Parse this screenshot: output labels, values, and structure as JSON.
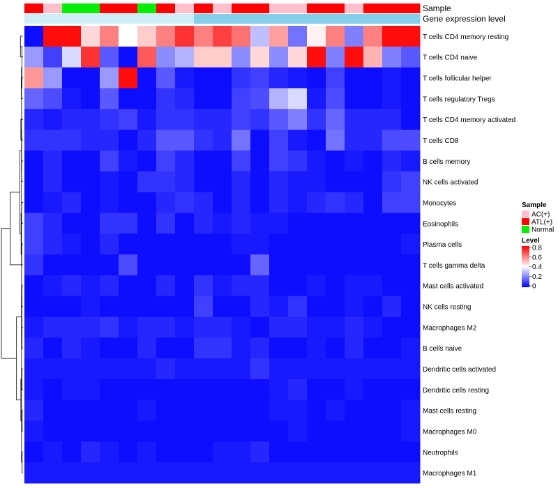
{
  "chart_data": {
    "type": "heatmap",
    "title": "",
    "annotation_tracks": [
      {
        "name": "Sample",
        "values": [
          "ATL(+)",
          "AC(+)",
          "Normal",
          "Normal",
          "ATL(+)",
          "ATL(+)",
          "Normal",
          "ATL(+)",
          "AC(+)",
          "ATL(+)",
          "AC(+)",
          "ATL(+)",
          "ATL(+)",
          "AC(+)",
          "AC(+)",
          "ATL(+)",
          "ATL(+)",
          "AC(+)",
          "ATL(+)",
          "ATL(+)",
          "ATL(+)"
        ]
      },
      {
        "name": "Gene expression level",
        "values": [
          "Low",
          "Low",
          "Low",
          "Low",
          "Low",
          "Low",
          "Low",
          "Low",
          "Low",
          "High",
          "High",
          "High",
          "High",
          "High",
          "High",
          "High",
          "High",
          "High",
          "High",
          "High",
          "High"
        ]
      }
    ],
    "annotation_colors": {
      "Sample": {
        "AC(+)": "#FFC0CB",
        "ATL(+)": "#FF0000",
        "Normal": "#00EE00"
      },
      "Gene expression level": {
        "Low": "#D0EEFA",
        "High": "#87CEEB"
      }
    },
    "rows": [
      "T cells CD4 memory resting",
      "T cells CD4 naive",
      "T cells follicular helper",
      "T cells regulatory  Tregs",
      "T cells CD4 memory activated",
      "T cells CD8",
      "B cells memory",
      "NK cells activated",
      "Monocytes",
      "Eosinophils",
      "Plasma cells",
      "T cells gamma delta",
      "Mast cells activated",
      "NK cells resting",
      "Macrophages M2",
      "B cells naive",
      "Dendritic cells activated",
      "Dendritic cells resting",
      "Mast cells resting",
      "Macrophages M0",
      "Neutrophils",
      "Macrophages M1"
    ],
    "values": [
      [
        0.02,
        0.78,
        0.78,
        0.46,
        0.6,
        0.4,
        0.48,
        0.6,
        0.72,
        0.6,
        0.7,
        0.62,
        0.3,
        0.55,
        0.18,
        0.42,
        0.6,
        0.2,
        0.6,
        0.78,
        0.78
      ],
      [
        0.24,
        0.1,
        0.34,
        0.72,
        0.14,
        0.02,
        0.66,
        0.22,
        0.28,
        0.48,
        0.48,
        0.22,
        0.46,
        0.22,
        0.46,
        0.78,
        0.2,
        0.78,
        0.52,
        0.2,
        0.14
      ],
      [
        0.56,
        0.24,
        0.02,
        0.02,
        0.24,
        0.78,
        0.02,
        0.14,
        0.04,
        0.02,
        0.02,
        0.08,
        0.1,
        0.06,
        0.04,
        0.02,
        0.1,
        0.02,
        0.02,
        0.04,
        0.02
      ],
      [
        0.16,
        0.12,
        0.04,
        0.02,
        0.14,
        0.02,
        0.02,
        0.08,
        0.06,
        0.02,
        0.02,
        0.1,
        0.12,
        0.28,
        0.34,
        0.04,
        0.12,
        0.02,
        0.02,
        0.04,
        0.02
      ],
      [
        0.06,
        0.04,
        0.06,
        0.06,
        0.08,
        0.1,
        0.04,
        0.08,
        0.08,
        0.06,
        0.06,
        0.1,
        0.08,
        0.14,
        0.2,
        0.08,
        0.16,
        0.06,
        0.06,
        0.06,
        0.02
      ],
      [
        0.08,
        0.08,
        0.08,
        0.06,
        0.06,
        0.02,
        0.06,
        0.14,
        0.14,
        0.08,
        0.06,
        0.18,
        0.02,
        0.1,
        0.04,
        0.02,
        0.18,
        0.06,
        0.06,
        0.12,
        0.12
      ],
      [
        0.02,
        0.06,
        0.02,
        0.02,
        0.1,
        0.04,
        0.02,
        0.1,
        0.06,
        0.02,
        0.02,
        0.1,
        0.02,
        0.1,
        0.08,
        0.04,
        0.02,
        0.04,
        0.02,
        0.06,
        0.04
      ],
      [
        0.02,
        0.06,
        0.02,
        0.02,
        0.04,
        0.02,
        0.08,
        0.08,
        0.06,
        0.02,
        0.02,
        0.06,
        0.02,
        0.06,
        0.04,
        0.04,
        0.02,
        0.02,
        0.02,
        0.08,
        0.1
      ],
      [
        0.02,
        0.04,
        0.06,
        0.02,
        0.04,
        0.02,
        0.02,
        0.06,
        0.08,
        0.06,
        0.02,
        0.06,
        0.02,
        0.06,
        0.04,
        0.06,
        0.08,
        0.06,
        0.02,
        0.1,
        0.1
      ],
      [
        0.1,
        0.06,
        0.02,
        0.02,
        0.08,
        0.08,
        0.02,
        0.08,
        0.02,
        0.06,
        0.04,
        0.06,
        0.04,
        0.04,
        0.02,
        0.02,
        0.02,
        0.02,
        0.02,
        0.02,
        0.02
      ],
      [
        0.1,
        0.06,
        0.04,
        0.02,
        0.06,
        0.02,
        0.02,
        0.02,
        0.02,
        0.02,
        0.02,
        0.04,
        0.04,
        0.02,
        0.02,
        0.02,
        0.02,
        0.02,
        0.02,
        0.02,
        0.04
      ],
      [
        0.08,
        0.02,
        0.02,
        0.02,
        0.02,
        0.12,
        0.02,
        0.02,
        0.02,
        0.02,
        0.02,
        0.02,
        0.16,
        0.02,
        0.02,
        0.02,
        0.02,
        0.02,
        0.02,
        0.02,
        0.02
      ],
      [
        0.02,
        0.04,
        0.06,
        0.04,
        0.06,
        0.02,
        0.02,
        0.06,
        0.02,
        0.08,
        0.04,
        0.06,
        0.06,
        0.02,
        0.02,
        0.04,
        0.02,
        0.04,
        0.04,
        0.02,
        0.02
      ],
      [
        0.02,
        0.02,
        0.02,
        0.04,
        0.02,
        0.02,
        0.02,
        0.02,
        0.02,
        0.1,
        0.02,
        0.02,
        0.06,
        0.04,
        0.08,
        0.02,
        0.02,
        0.04,
        0.02,
        0.06,
        0.02
      ],
      [
        0.04,
        0.06,
        0.06,
        0.06,
        0.08,
        0.04,
        0.06,
        0.06,
        0.04,
        0.06,
        0.06,
        0.04,
        0.02,
        0.06,
        0.06,
        0.04,
        0.04,
        0.06,
        0.04,
        0.02,
        0.02
      ],
      [
        0.06,
        0.02,
        0.06,
        0.04,
        0.02,
        0.02,
        0.06,
        0.02,
        0.02,
        0.08,
        0.08,
        0.04,
        0.06,
        0.02,
        0.02,
        0.04,
        0.02,
        0.06,
        0.02,
        0.02,
        0.04
      ],
      [
        0.04,
        0.04,
        0.04,
        0.04,
        0.04,
        0.04,
        0.04,
        0.06,
        0.04,
        0.04,
        0.04,
        0.04,
        0.08,
        0.04,
        0.04,
        0.04,
        0.04,
        0.04,
        0.04,
        0.04,
        0.04
      ],
      [
        0.04,
        0.02,
        0.04,
        0.04,
        0.02,
        0.02,
        0.02,
        0.02,
        0.02,
        0.02,
        0.02,
        0.02,
        0.02,
        0.04,
        0.06,
        0.02,
        0.02,
        0.04,
        0.02,
        0.02,
        0.02
      ],
      [
        0.06,
        0.02,
        0.02,
        0.02,
        0.02,
        0.02,
        0.04,
        0.02,
        0.02,
        0.02,
        0.02,
        0.02,
        0.02,
        0.04,
        0.04,
        0.02,
        0.04,
        0.02,
        0.02,
        0.02,
        0.04
      ],
      [
        0.04,
        0.02,
        0.02,
        0.02,
        0.02,
        0.02,
        0.02,
        0.02,
        0.02,
        0.02,
        0.02,
        0.02,
        0.02,
        0.02,
        0.04,
        0.02,
        0.02,
        0.02,
        0.02,
        0.02,
        0.04
      ],
      [
        0.02,
        0.04,
        0.02,
        0.06,
        0.04,
        0.02,
        0.04,
        0.02,
        0.02,
        0.02,
        0.04,
        0.04,
        0.06,
        0.02,
        0.02,
        0.02,
        0.02,
        0.02,
        0.02,
        0.02,
        0.02
      ],
      [
        0.04,
        0.04,
        0.04,
        0.04,
        0.04,
        0.04,
        0.04,
        0.04,
        0.04,
        0.04,
        0.04,
        0.04,
        0.04,
        0.04,
        0.04,
        0.04,
        0.04,
        0.04,
        0.04,
        0.04,
        0.04
      ]
    ],
    "dendrogram": {
      "merges": [
        [
          0,
          1
        ],
        [
          2,
          3
        ],
        [
          4,
          5
        ],
        [
          6,
          7
        ],
        [
          8,
          9
        ],
        [
          10,
          11
        ],
        [
          12,
          13
        ],
        [
          14,
          15
        ],
        [
          16,
          17
        ],
        [
          18,
          19
        ],
        [
          20,
          21
        ],
        [
          22,
          23
        ],
        [
          24,
          25
        ],
        [
          26,
          27
        ],
        [
          28,
          29
        ],
        [
          30,
          31
        ],
        [
          32,
          33
        ],
        [
          34,
          35
        ],
        [
          36,
          37
        ],
        [
          38,
          39
        ],
        [
          40,
          41
        ]
      ],
      "heights": [
        0.12,
        0.08,
        0.1,
        0.07,
        0.07,
        0.06,
        0.05,
        0.05,
        0.05,
        0.04,
        0.04,
        0.05,
        0.06,
        0.09,
        0.05,
        0.1,
        0.07,
        0.15,
        0.3,
        0.6,
        1.0
      ]
    },
    "legend": {
      "sample_title": "Sample",
      "sample_entries": [
        "AC(+)",
        "ATL(+)",
        "Normal"
      ],
      "level_title": "Level",
      "level_ticks": [
        "0.8",
        "0.6",
        "0.4",
        "0.2",
        "0"
      ],
      "level_tick_values": [
        0.8,
        0.6,
        0.4,
        0.2,
        0
      ],
      "level_range": [
        0,
        0.8
      ],
      "level_colors": [
        "#0000FF",
        "#FFFFFF",
        "#FF0000"
      ]
    }
  }
}
